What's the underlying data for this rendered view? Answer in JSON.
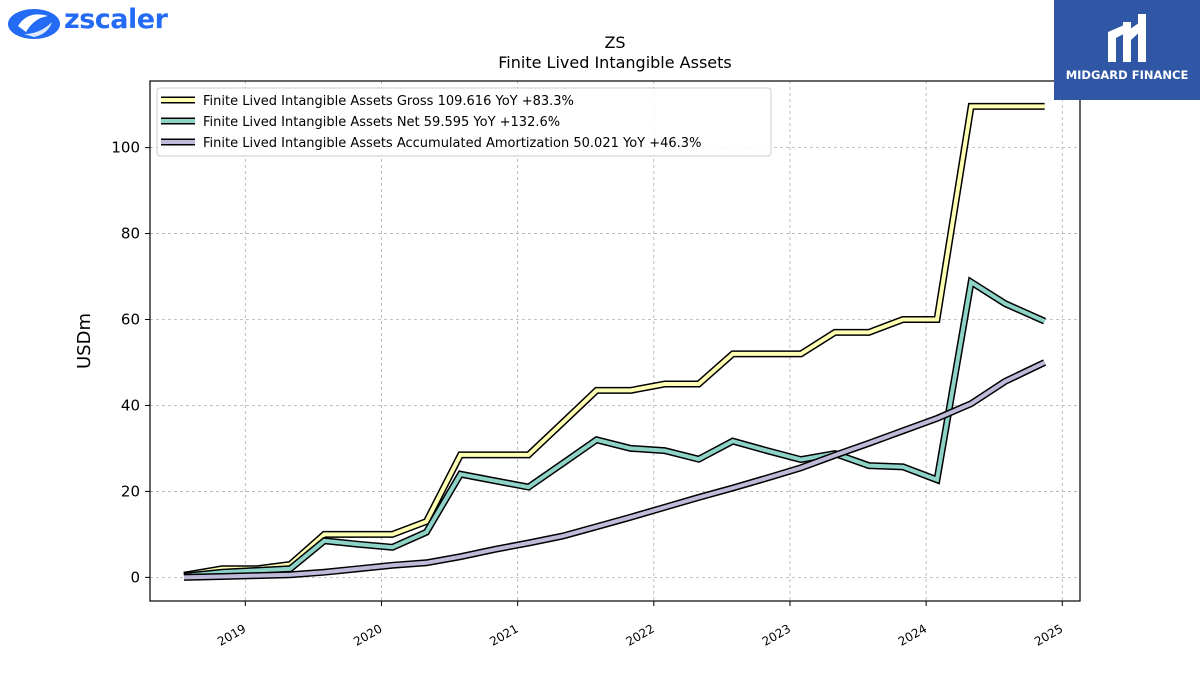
{
  "brand_left": {
    "name": "zscaler"
  },
  "brand_right": {
    "name": "MIDGARD FINANCE"
  },
  "chart_data": {
    "type": "line",
    "title": "ZS",
    "subtitle": "Finite Lived Intangible Assets",
    "ylabel": "USDm",
    "xlabel": "",
    "xlim": [
      2018.3,
      2025.13
    ],
    "ylim": [
      -5.5,
      115.5
    ],
    "x_ticks": [
      2019,
      2020,
      2021,
      2022,
      2023,
      2024,
      2025
    ],
    "x_tick_labels": [
      "2019",
      "2020",
      "2021",
      "2022",
      "2023",
      "2024",
      "2025"
    ],
    "y_ticks": [
      0,
      20,
      40,
      60,
      80,
      100
    ],
    "y_tick_labels": [
      "0",
      "20",
      "40",
      "60",
      "80",
      "100"
    ],
    "grid": true,
    "legend_position": "top-left",
    "series": [
      {
        "name": "Finite Lived Intangible Assets Gross",
        "legend_label": "Finite Lived Intangible Assets Gross  109.616 YoY +83.3%",
        "color": "#ffffb3",
        "x": [
          2018.55,
          2018.83,
          2019.08,
          2019.33,
          2019.58,
          2019.83,
          2020.08,
          2020.33,
          2020.58,
          2020.83,
          2021.08,
          2021.33,
          2021.58,
          2021.83,
          2022.08,
          2022.33,
          2022.58,
          2022.83,
          2023.08,
          2023.33,
          2023.58,
          2023.83,
          2024.08,
          2024.33,
          2024.58,
          2024.87
        ],
        "values": [
          0.5,
          2.0,
          2.0,
          3.0,
          10.0,
          10.0,
          10.0,
          13.0,
          28.5,
          28.5,
          28.5,
          36.0,
          43.5,
          43.5,
          45.0,
          45.0,
          52.0,
          52.0,
          52.0,
          57.0,
          57.0,
          60.0,
          60.0,
          109.6,
          109.6,
          109.6
        ]
      },
      {
        "name": "Finite Lived Intangible Assets Net",
        "legend_label": "Finite Lived Intangible Assets Net  59.595 YoY +132.6%",
        "color": "#8dd3c7",
        "x": [
          2018.55,
          2018.83,
          2019.08,
          2019.33,
          2019.58,
          2019.83,
          2020.08,
          2020.33,
          2020.58,
          2020.83,
          2021.08,
          2021.33,
          2021.58,
          2021.83,
          2022.08,
          2022.33,
          2022.58,
          2022.83,
          2023.08,
          2023.33,
          2023.58,
          2023.83,
          2024.08,
          2024.33,
          2024.58,
          2024.87
        ],
        "values": [
          0.3,
          1.2,
          1.6,
          2.0,
          8.5,
          7.7,
          7.0,
          10.5,
          24.0,
          22.5,
          21.0,
          26.5,
          32.0,
          30.0,
          29.5,
          27.5,
          31.7,
          29.5,
          27.4,
          28.8,
          26.0,
          25.7,
          22.7,
          68.7,
          63.7,
          59.6
        ]
      },
      {
        "name": "Finite Lived Intangible Assets Accumulated Amortization",
        "legend_label": "Finite Lived Intangible Assets Accumulated Amortization  50.021 YoY +46.3%",
        "color": "#bebada",
        "x": [
          2018.55,
          2018.83,
          2019.08,
          2019.33,
          2019.58,
          2019.83,
          2020.08,
          2020.33,
          2020.58,
          2020.83,
          2021.08,
          2021.33,
          2021.58,
          2021.83,
          2022.08,
          2022.33,
          2022.58,
          2022.83,
          2023.08,
          2023.33,
          2023.58,
          2023.83,
          2024.08,
          2024.33,
          2024.58,
          2024.87
        ],
        "values": [
          0.0,
          0.2,
          0.4,
          0.6,
          1.2,
          2.0,
          2.8,
          3.4,
          4.8,
          6.5,
          8.0,
          9.6,
          11.8,
          14.0,
          16.3,
          18.6,
          20.8,
          23.1,
          25.5,
          28.4,
          31.2,
          34.1,
          37.0,
          40.4,
          45.6,
          50.0
        ]
      }
    ]
  }
}
